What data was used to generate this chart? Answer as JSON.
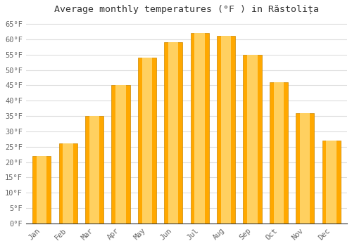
{
  "title": "Average monthly temperatures (°F ) in Răstolița",
  "months": [
    "Jan",
    "Feb",
    "Mar",
    "Apr",
    "May",
    "Jun",
    "Jul",
    "Aug",
    "Sep",
    "Oct",
    "Nov",
    "Dec"
  ],
  "values": [
    22,
    26,
    35,
    45,
    54,
    59,
    62,
    61,
    55,
    46,
    36,
    27
  ],
  "bar_color_center": "#FFD060",
  "bar_color_edge": "#FFA800",
  "ylim": [
    0,
    67
  ],
  "yticks": [
    0,
    5,
    10,
    15,
    20,
    25,
    30,
    35,
    40,
    45,
    50,
    55,
    60,
    65
  ],
  "ytick_labels": [
    "0°F",
    "5°F",
    "10°F",
    "15°F",
    "20°F",
    "25°F",
    "30°F",
    "35°F",
    "40°F",
    "45°F",
    "50°F",
    "55°F",
    "60°F",
    "65°F"
  ],
  "bg_color": "#FFFFFF",
  "grid_color": "#DDDDDD",
  "title_fontsize": 9.5,
  "tick_fontsize": 7.5,
  "bar_width": 0.7
}
